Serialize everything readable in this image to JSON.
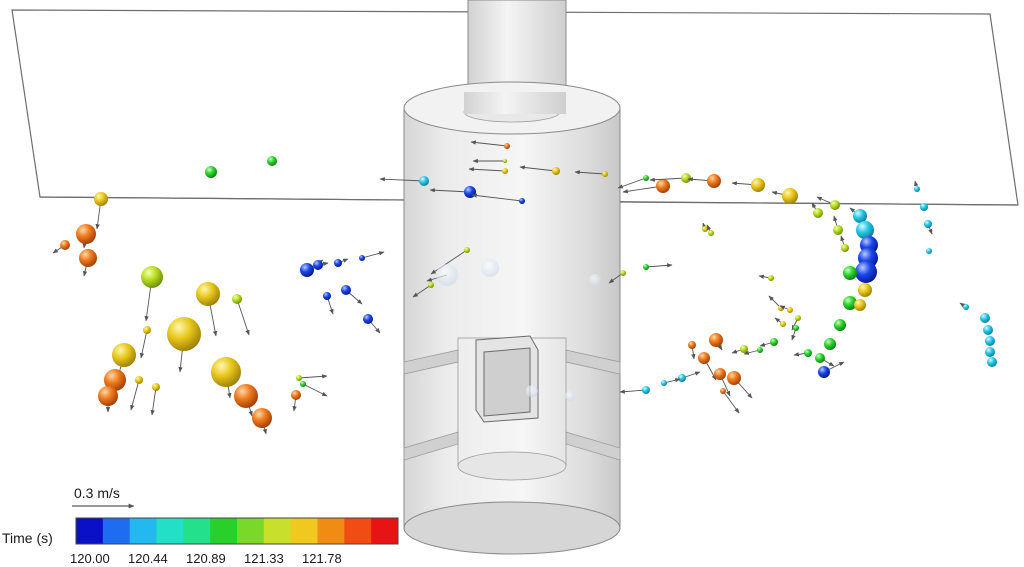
{
  "scale_arrow": {
    "label": "0.3 m/s"
  },
  "colorbar": {
    "title": "Time (s)",
    "ticks": [
      "120.00",
      "120.44",
      "120.89",
      "121.33",
      "121.78"
    ],
    "colors": [
      "#0a10c8",
      "#1e6cf0",
      "#22b8f0",
      "#22e0c8",
      "#22e08c",
      "#2ad02a",
      "#7ad82a",
      "#c8e02a",
      "#f0c81e",
      "#f08c14",
      "#f04c14",
      "#e81414"
    ]
  }
}
